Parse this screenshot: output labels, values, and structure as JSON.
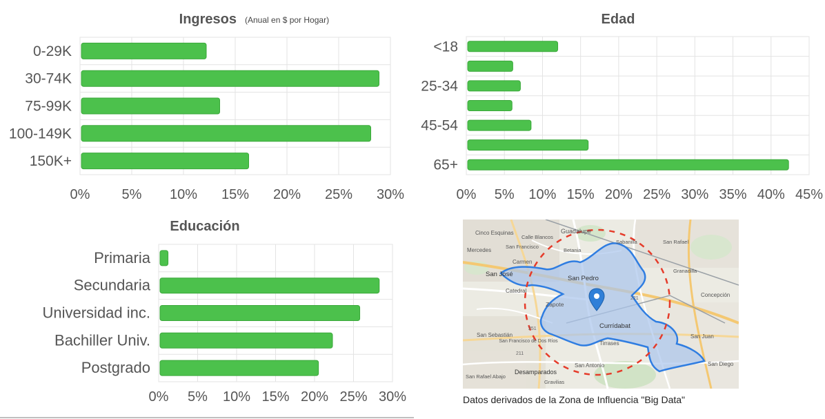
{
  "chart_data": [
    {
      "id": "ingresos",
      "type": "bar",
      "orientation": "horizontal",
      "title": "Ingresos",
      "subtitle": "(Anual en $ por Hogar)",
      "categories": [
        "0-29K",
        "30-74K",
        "75-99K",
        "100-149K",
        "150K+"
      ],
      "values": [
        12.2,
        28.9,
        13.5,
        28.1,
        16.3
      ],
      "xlim": [
        0,
        30
      ],
      "ticks": [
        "0%",
        "5%",
        "10%",
        "15%",
        "20%",
        "25%",
        "30%"
      ],
      "grid": true,
      "color": "#4cc14c"
    },
    {
      "id": "edad",
      "type": "bar",
      "orientation": "horizontal",
      "title": "Edad",
      "subtitle": "",
      "categories": [
        "<18",
        "",
        "25-34",
        "",
        "45-54",
        "",
        "65+"
      ],
      "values": [
        12.0,
        6.1,
        7.1,
        6.0,
        8.5,
        16.0,
        42.3
      ],
      "xlim": [
        0,
        45
      ],
      "ticks": [
        "0%",
        "5%",
        "10%",
        "15%",
        "20%",
        "25%",
        "30%",
        "35%",
        "40%",
        "45%"
      ],
      "grid": true,
      "color": "#4cc14c"
    },
    {
      "id": "educacion",
      "type": "bar",
      "orientation": "horizontal",
      "title": "Educación",
      "subtitle": "",
      "categories": [
        "Primaria",
        "Secundaria",
        "Universidad inc.",
        "Bachiller Univ.",
        "Postgrado"
      ],
      "values": [
        1.2,
        28.3,
        25.8,
        22.3,
        20.5
      ],
      "xlim": [
        0,
        30
      ],
      "ticks": [
        "0%",
        "5%",
        "10%",
        "15%",
        "20%",
        "25%",
        "30%"
      ],
      "grid": true,
      "color": "#4cc14c"
    }
  ],
  "map": {
    "caption": "Datos derivados de la Zona de Influencia \"Big Data\"",
    "labels": [
      "Cinco Esquinas",
      "Guadalupe",
      "Calle Blancos",
      "Mercedes",
      "San Francisco",
      "Betania",
      "Sabanilla",
      "San Rafael",
      "Carmen",
      "San José",
      "San Pedro",
      "Catedral",
      "Zapote",
      "Currídabat",
      "Concepción",
      "Granadilla",
      "San Sebastián",
      "San Francisco de Dos Ríos",
      "Tirrases",
      "San Juan",
      "San Antonio",
      "Desamparados",
      "San Diego",
      "San Rafael Abajo",
      "Gravilias"
    ],
    "road_numbers": [
      "221",
      "251",
      "211"
    ],
    "colors": {
      "zone_fill": "#a9c4ec",
      "zone_stroke": "#2f7de1",
      "ring": "#e53b2a",
      "pin": "#2f7fd8"
    }
  }
}
